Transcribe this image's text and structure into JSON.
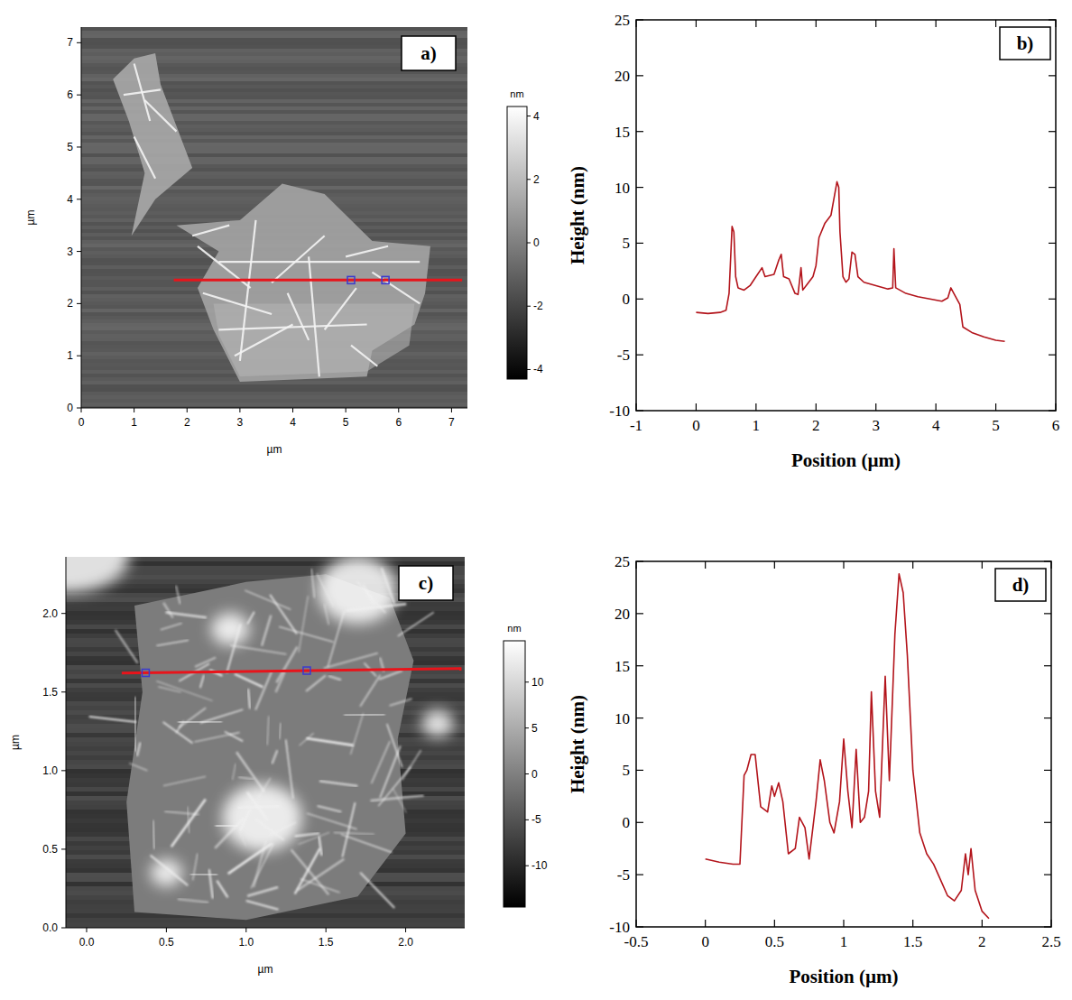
{
  "chart_data": [
    {
      "type": "image",
      "panel": "a)",
      "x_label": "µm",
      "y_label": "µm",
      "xlim": [
        0,
        7.3
      ],
      "ylim": [
        0,
        7.3
      ],
      "xticks": [
        0,
        1,
        2,
        3,
        4,
        5,
        6,
        7
      ],
      "yticks": [
        0,
        1,
        2,
        3,
        4,
        5,
        6,
        7
      ],
      "colorbar": {
        "label": "nm",
        "range": [
          -4.3,
          4.3
        ],
        "ticks": [
          -4,
          -2,
          0,
          2,
          4
        ]
      },
      "profile_line": {
        "x": [
          1.75,
          7.2
        ],
        "y": [
          2.45,
          2.45
        ],
        "color": "#e8141b"
      },
      "cursors": {
        "x": [
          5.1,
          5.75
        ]
      }
    },
    {
      "type": "line",
      "panel": "b)",
      "x_label": "Position (µm)",
      "y_label": "Height (nm)",
      "xlim": [
        -1,
        6
      ],
      "ylim": [
        -10,
        25
      ],
      "xticks": [
        -1,
        0,
        1,
        2,
        3,
        4,
        5,
        6
      ],
      "yticks": [
        -10,
        -5,
        0,
        5,
        10,
        15,
        20,
        25
      ],
      "series": [
        {
          "color": "#b3141b",
          "x": [
            0,
            0.2,
            0.4,
            0.5,
            0.55,
            0.6,
            0.63,
            0.66,
            0.7,
            0.8,
            0.9,
            1.0,
            1.1,
            1.15,
            1.3,
            1.38,
            1.42,
            1.46,
            1.55,
            1.65,
            1.7,
            1.75,
            1.78,
            1.85,
            1.95,
            2.0,
            2.05,
            2.15,
            2.25,
            2.3,
            2.35,
            2.38,
            2.4,
            2.45,
            2.5,
            2.55,
            2.6,
            2.65,
            2.7,
            2.8,
            3.0,
            3.2,
            3.28,
            3.3,
            3.33,
            3.5,
            3.7,
            3.9,
            4.1,
            4.2,
            4.25,
            4.3,
            4.4,
            4.45,
            4.6,
            4.8,
            5.0,
            5.15
          ],
          "values": [
            -1.2,
            -1.3,
            -1.2,
            -1.0,
            0.5,
            6.5,
            6.0,
            2.0,
            1.0,
            0.8,
            1.2,
            2.0,
            2.8,
            2.0,
            2.2,
            3.5,
            4.0,
            2.0,
            1.8,
            0.5,
            0.4,
            2.8,
            0.8,
            1.3,
            2.0,
            3.0,
            5.5,
            6.8,
            7.5,
            9.0,
            10.5,
            10.0,
            6.0,
            2.0,
            1.5,
            1.8,
            4.2,
            4.0,
            2.0,
            1.5,
            1.2,
            0.9,
            1.0,
            4.5,
            1.0,
            0.5,
            0.2,
            0.0,
            -0.2,
            0.1,
            1.0,
            0.5,
            -0.5,
            -2.5,
            -3.0,
            -3.4,
            -3.7,
            -3.8
          ]
        }
      ]
    },
    {
      "type": "image",
      "panel": "c)",
      "x_label": "µm",
      "y_label": "µm",
      "xlim": [
        -0.13,
        2.37
      ],
      "ylim": [
        0,
        2.36
      ],
      "xticks": [
        {
          "value": 0,
          "label": "0.0"
        },
        {
          "value": 0.5,
          "label": "0.5"
        },
        {
          "value": 1,
          "label": "1.0"
        },
        {
          "value": 1.5,
          "label": "1.5"
        },
        {
          "value": 2,
          "label": "2.0"
        }
      ],
      "yticks": [
        {
          "value": 0,
          "label": "0.0"
        },
        {
          "value": 0.5,
          "label": "0.5"
        },
        {
          "value": 1,
          "label": "1.0"
        },
        {
          "value": 1.5,
          "label": "1.5"
        },
        {
          "value": 2,
          "label": "2.0"
        }
      ],
      "colorbar": {
        "label": "nm",
        "range": [
          -14.5,
          14.5
        ],
        "ticks": [
          -10,
          -5,
          0,
          5,
          10
        ]
      },
      "profile_line": {
        "x": [
          0.22,
          2.35
        ],
        "y": [
          1.62,
          1.65
        ],
        "color": "#e8141b"
      },
      "cursors": {
        "x": [
          0.37,
          1.38
        ]
      }
    },
    {
      "type": "line",
      "panel": "d)",
      "x_label": "Position (µm)",
      "y_label": "Height (nm)",
      "xlim": [
        -0.5,
        2.5
      ],
      "ylim": [
        -10,
        25
      ],
      "xticks": [
        -0.5,
        0,
        0.5,
        1,
        1.5,
        2,
        2.5
      ],
      "yticks": [
        -10,
        -5,
        0,
        5,
        10,
        15,
        20,
        25
      ],
      "series": [
        {
          "color": "#b3141b",
          "x": [
            0,
            0.1,
            0.2,
            0.25,
            0.28,
            0.3,
            0.33,
            0.36,
            0.4,
            0.45,
            0.48,
            0.5,
            0.53,
            0.56,
            0.6,
            0.65,
            0.68,
            0.72,
            0.75,
            0.8,
            0.83,
            0.86,
            0.9,
            0.93,
            0.97,
            1.0,
            1.03,
            1.06,
            1.09,
            1.12,
            1.15,
            1.18,
            1.2,
            1.23,
            1.26,
            1.3,
            1.33,
            1.37,
            1.4,
            1.43,
            1.46,
            1.5,
            1.55,
            1.6,
            1.65,
            1.7,
            1.75,
            1.8,
            1.85,
            1.88,
            1.9,
            1.92,
            1.95,
            2.0,
            2.05
          ],
          "values": [
            -3.5,
            -3.8,
            -4.0,
            -4.0,
            4.5,
            5.0,
            6.5,
            6.5,
            1.5,
            1.0,
            3.5,
            2.5,
            3.8,
            2.0,
            -3.0,
            -2.5,
            0.5,
            -0.5,
            -3.5,
            2.0,
            6.0,
            4.0,
            0.0,
            -1.0,
            2.0,
            8.0,
            3.0,
            -0.5,
            7.0,
            0.0,
            0.5,
            3.0,
            12.5,
            3.0,
            0.5,
            14.0,
            4.0,
            18.0,
            23.8,
            22.0,
            16.0,
            5.0,
            -1.0,
            -3.0,
            -4.0,
            -5.5,
            -7.0,
            -7.5,
            -6.5,
            -3.0,
            -5.0,
            -2.5,
            -6.5,
            -8.5,
            -9.2
          ]
        }
      ]
    }
  ]
}
